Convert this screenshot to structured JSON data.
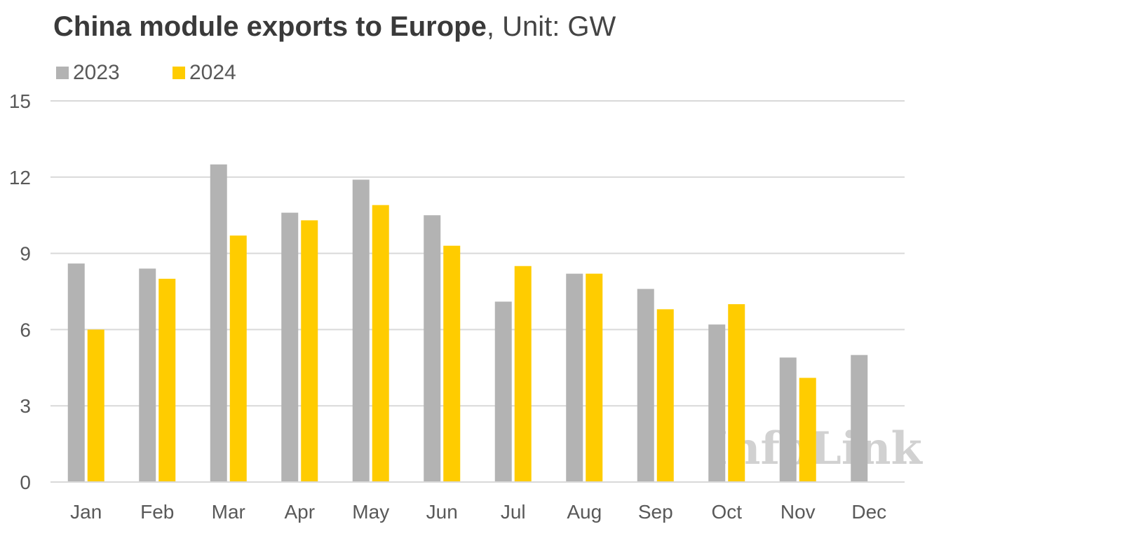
{
  "title": {
    "bold": "China module exports to Europe",
    "rest": ", Unit: GW"
  },
  "watermark": "InfoLink",
  "colors": {
    "2023": "#b3b3b3",
    "2024": "#ffcc00",
    "grid": "#d9d9d9",
    "text": "#595959"
  },
  "chart_data": {
    "type": "bar",
    "title": "China module exports to Europe, Unit: GW",
    "xlabel": "",
    "ylabel": "",
    "ylim": [
      0,
      15
    ],
    "yticks": [
      0,
      3,
      6,
      9,
      12,
      15
    ],
    "grid": true,
    "legend": "top-left",
    "categories": [
      "Jan",
      "Feb",
      "Mar",
      "Apr",
      "May",
      "Jun",
      "Jul",
      "Aug",
      "Sep",
      "Oct",
      "Nov",
      "Dec"
    ],
    "series": [
      {
        "name": "2023",
        "color": "#b3b3b3",
        "values": [
          8.6,
          8.4,
          12.5,
          10.6,
          11.9,
          10.5,
          7.1,
          8.2,
          7.6,
          6.2,
          4.9,
          5.0
        ]
      },
      {
        "name": "2024",
        "color": "#ffcc00",
        "values": [
          6.0,
          8.0,
          9.7,
          10.3,
          10.9,
          9.3,
          8.5,
          8.2,
          6.8,
          7.0,
          4.1,
          null
        ]
      }
    ]
  }
}
